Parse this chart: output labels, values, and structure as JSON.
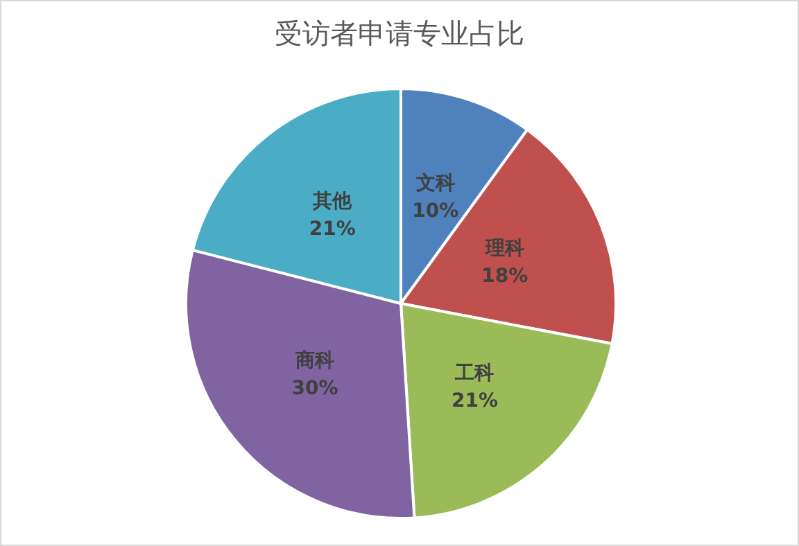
{
  "chart_data": {
    "type": "pie",
    "title": "受访者申请专业占比",
    "categories": [
      "文科",
      "理科",
      "工科",
      "商科",
      "其他"
    ],
    "values": [
      10,
      18,
      21,
      30,
      21
    ],
    "value_labels": [
      "10%",
      "18%",
      "21%",
      "30%",
      "21%"
    ],
    "colors": [
      "#4f81bd",
      "#c0504d",
      "#9bbb59",
      "#8064a2",
      "#4bacc6"
    ],
    "legend": false
  }
}
